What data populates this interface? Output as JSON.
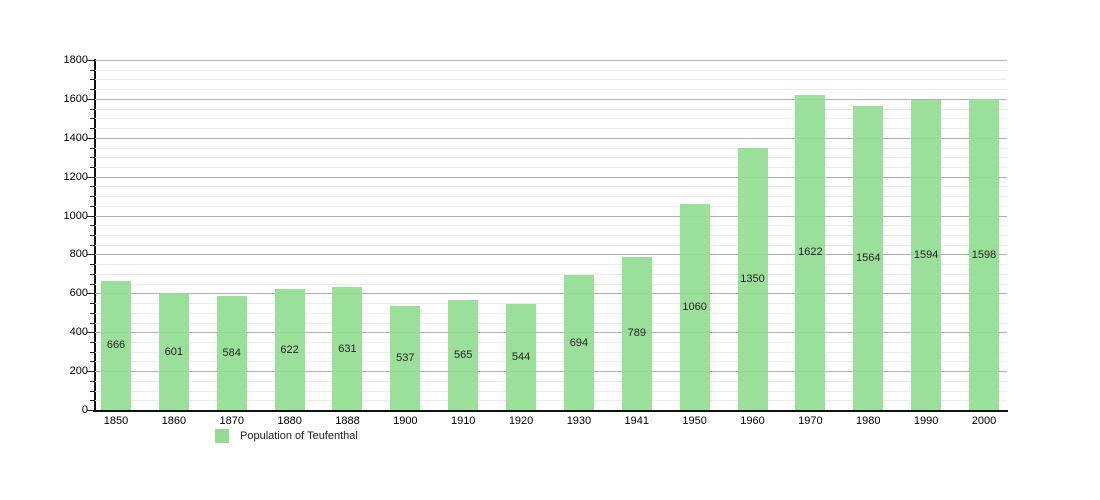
{
  "chart_data": {
    "type": "bar",
    "categories": [
      "1850",
      "1860",
      "1870",
      "1880",
      "1888",
      "1900",
      "1910",
      "1920",
      "1930",
      "1941",
      "1950",
      "1960",
      "1970",
      "1980",
      "1990",
      "2000"
    ],
    "values": [
      666,
      601,
      584,
      622,
      631,
      537,
      565,
      544,
      694,
      789,
      1060,
      1350,
      1622,
      1564,
      1594,
      1598
    ],
    "legend": "Population of Teufenthal",
    "legend_position": "bottom-left",
    "ylim": [
      0,
      1800
    ],
    "ytick_step": 200,
    "y_minor_step": 50,
    "grid": true,
    "bar_color": "#92DD92",
    "bar_opacity": 0.92,
    "major_grid_color": "#b0b0b0",
    "minor_grid_color": "#ececec",
    "axis_color": "#111111",
    "value_label_color": "#111111",
    "tick_label_color": "#000000"
  }
}
